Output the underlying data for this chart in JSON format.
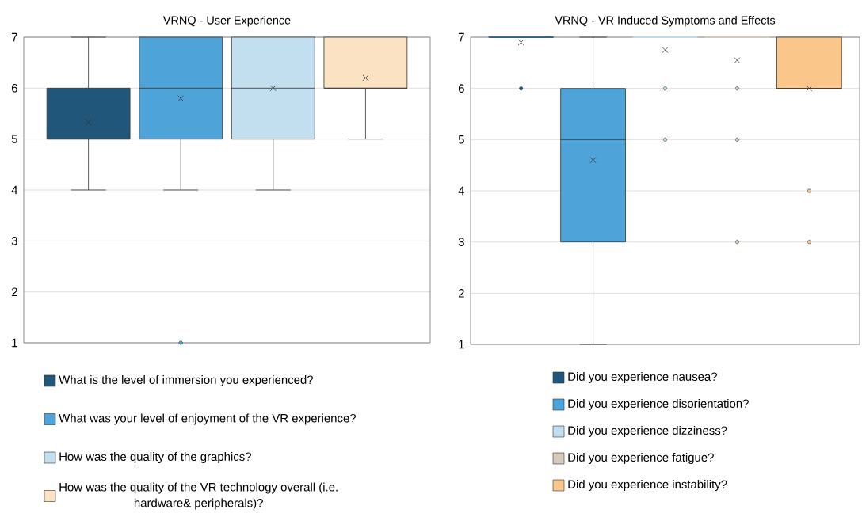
{
  "chart_data": [
    {
      "type": "box",
      "title": "VRNQ - User Experience",
      "categories": [
        null
      ],
      "ylim": [
        1,
        7
      ],
      "yticks": [
        1,
        2,
        3,
        4,
        5,
        6,
        7
      ],
      "grid": "y",
      "legend": "bottom",
      "tick_labels": "y",
      "series": [
        {
          "name": "What is the level of immersion you experienced?",
          "color": "#1f5679",
          "boxes": [
            {
              "low": 4,
              "q1": 5,
              "median": 5,
              "q3": 6,
              "high": 7,
              "mean": 5.33
            }
          ]
        },
        {
          "name": "What was your level of enjoyment of the VR experience?",
          "color": "#4ea3d8",
          "boxes": [
            {
              "low": 4,
              "q1": 5,
              "median": 6,
              "q3": 7,
              "high": 7,
              "mean": 5.8,
              "outliers": [
                1
              ]
            }
          ]
        },
        {
          "name": "How was the quality of the graphics?",
          "color": "#c2dff0",
          "boxes": [
            {
              "low": 4,
              "q1": 5,
              "median": 6,
              "q3": 7,
              "high": 7,
              "mean": 6
            }
          ]
        },
        {
          "name": "How was the quality of the VR technology overall (i.e. hardware& peripherals)?",
          "color": "#fbe2c3",
          "boxes": [
            {
              "low": 5,
              "q1": 6,
              "median": 6,
              "q3": 7,
              "high": 7,
              "mean": 6.2
            }
          ]
        }
      ]
    },
    {
      "type": "box",
      "title": "VRNQ - VR Induced Symptoms and Effects",
      "categories": [
        null
      ],
      "ylim": [
        1,
        7
      ],
      "yticks": [
        1,
        2,
        3,
        4,
        5,
        6,
        7
      ],
      "grid": "y",
      "legend": "bottom",
      "tick_labels": "y",
      "series": [
        {
          "name": "Did you experience nausea?",
          "color": "#1f5679",
          "boxes": [
            {
              "low": 7,
              "q1": 7,
              "median": 7,
              "q3": 7,
              "high": 7,
              "mean": 6.9,
              "outliers": [
                6
              ]
            }
          ]
        },
        {
          "name": "Did you experience disorientation?",
          "color": "#4ea3d8",
          "boxes": [
            {
              "low": 1,
              "q1": 3,
              "median": 5,
              "q3": 6,
              "high": 7,
              "mean": 4.6
            }
          ]
        },
        {
          "name": "Did you experience dizziness?",
          "color": "#c2dff0",
          "boxes": [
            {
              "low": 7,
              "q1": 7,
              "median": 7,
              "q3": 7,
              "high": 7,
              "mean": 6.75,
              "outliers": [
                6,
                5
              ]
            }
          ]
        },
        {
          "name": "Did you experience fatigue?",
          "color": "#d6cbbb",
          "boxes": [
            {
              "low": 7,
              "q1": 7,
              "median": 7,
              "q3": 7,
              "high": 7,
              "mean": 6.55,
              "outliers": [
                6,
                5,
                3
              ]
            }
          ]
        },
        {
          "name": "Did you experience instability?",
          "color": "#fbc68a",
          "boxes": [
            {
              "low": 6,
              "q1": 6,
              "median": 6,
              "q3": 7,
              "high": 7,
              "mean": 6,
              "outliers": [
                4,
                3
              ]
            }
          ]
        }
      ]
    }
  ]
}
